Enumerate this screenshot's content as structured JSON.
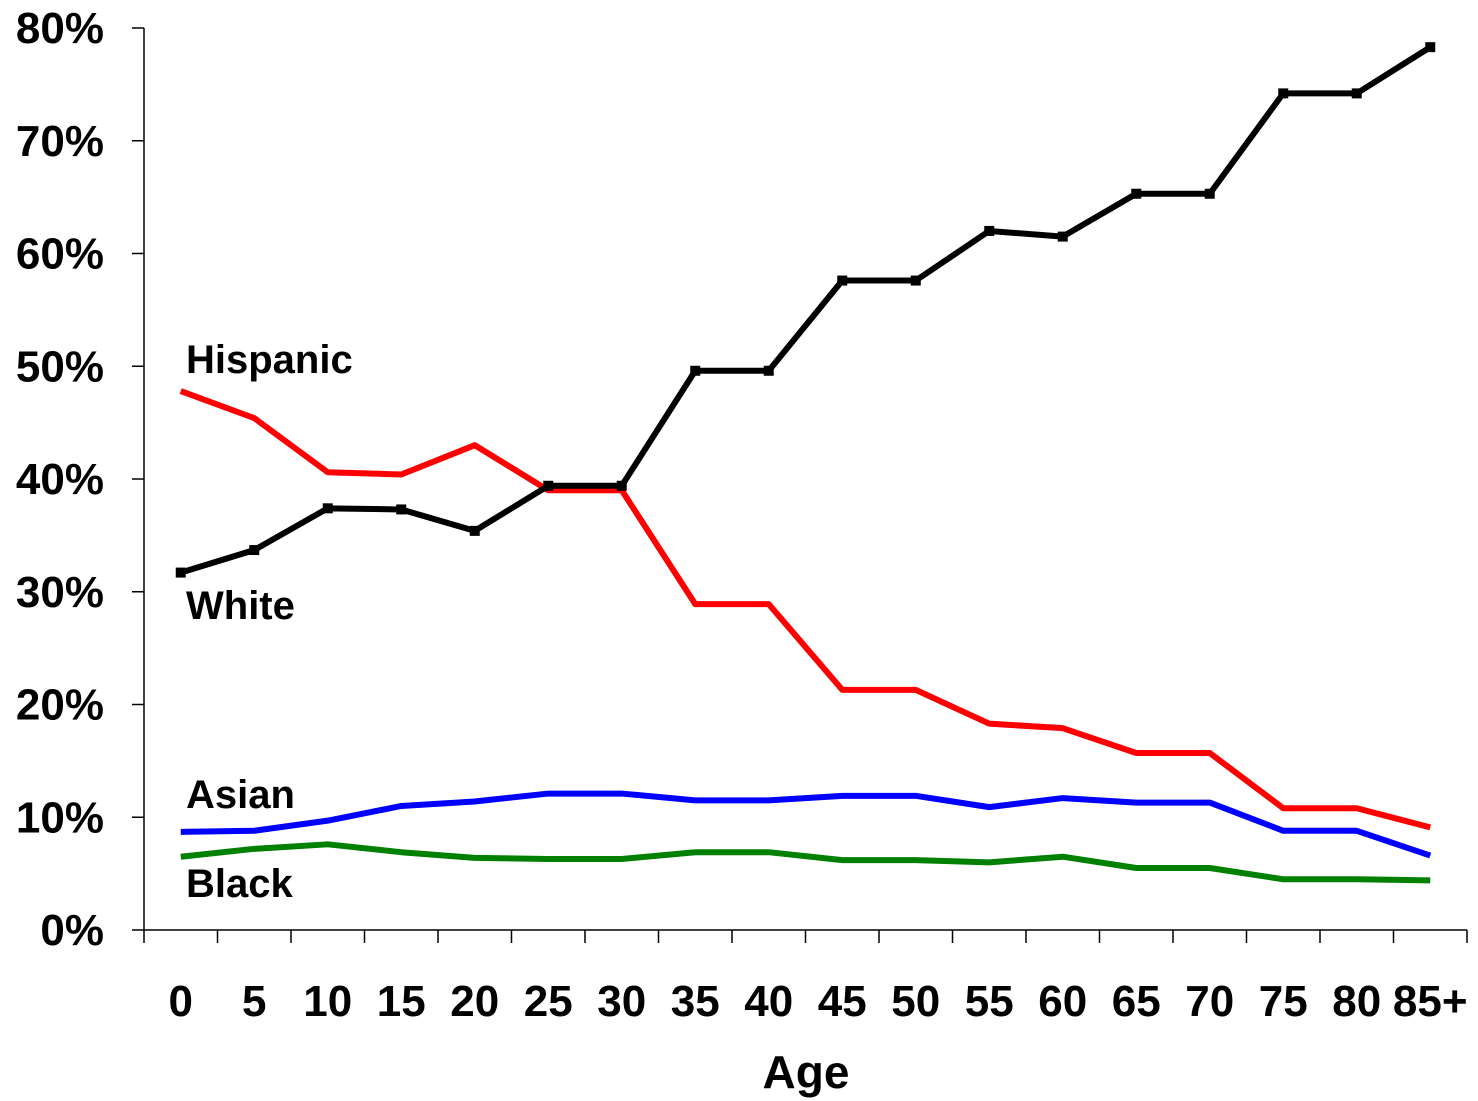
{
  "chart_data": {
    "type": "line",
    "categories": [
      "0",
      "5",
      "10",
      "15",
      "20",
      "25",
      "30",
      "35",
      "40",
      "45",
      "50",
      "55",
      "60",
      "65",
      "70",
      "75",
      "80",
      "85+"
    ],
    "xlabel": "Age",
    "ylabel": "",
    "ylim": [
      0,
      80
    ],
    "yticks": [
      "0%",
      "10%",
      "20%",
      "30%",
      "40%",
      "50%",
      "60%",
      "70%",
      "80%"
    ],
    "grid": false,
    "legend": "inline labels",
    "series": [
      {
        "name": "White",
        "color": "#000000",
        "marker": "square",
        "values": [
          31.7,
          33.7,
          37.4,
          37.3,
          35.4,
          39.4,
          39.4,
          49.6,
          49.6,
          57.6,
          57.6,
          62.0,
          61.5,
          65.3,
          65.3,
          74.2,
          74.2,
          78.3
        ]
      },
      {
        "name": "Hispanic",
        "color": "#ff0000",
        "marker": "none",
        "values": [
          47.8,
          45.4,
          40.6,
          40.4,
          43.0,
          39.0,
          39.0,
          28.9,
          28.9,
          21.3,
          21.3,
          18.3,
          17.9,
          15.7,
          15.7,
          10.8,
          10.8,
          9.1
        ]
      },
      {
        "name": "Asian",
        "color": "#0000ff",
        "marker": "none",
        "values": [
          8.7,
          8.8,
          9.7,
          11.0,
          11.4,
          12.1,
          12.1,
          11.5,
          11.5,
          11.9,
          11.9,
          10.9,
          11.7,
          11.3,
          11.3,
          8.8,
          8.8,
          6.6
        ]
      },
      {
        "name": "Black",
        "color": "#008000",
        "marker": "none",
        "values": [
          6.5,
          7.2,
          7.6,
          6.9,
          6.4,
          6.3,
          6.3,
          6.9,
          6.9,
          6.2,
          6.2,
          6.0,
          6.5,
          5.5,
          5.5,
          4.5,
          4.5,
          4.4
        ]
      }
    ]
  }
}
